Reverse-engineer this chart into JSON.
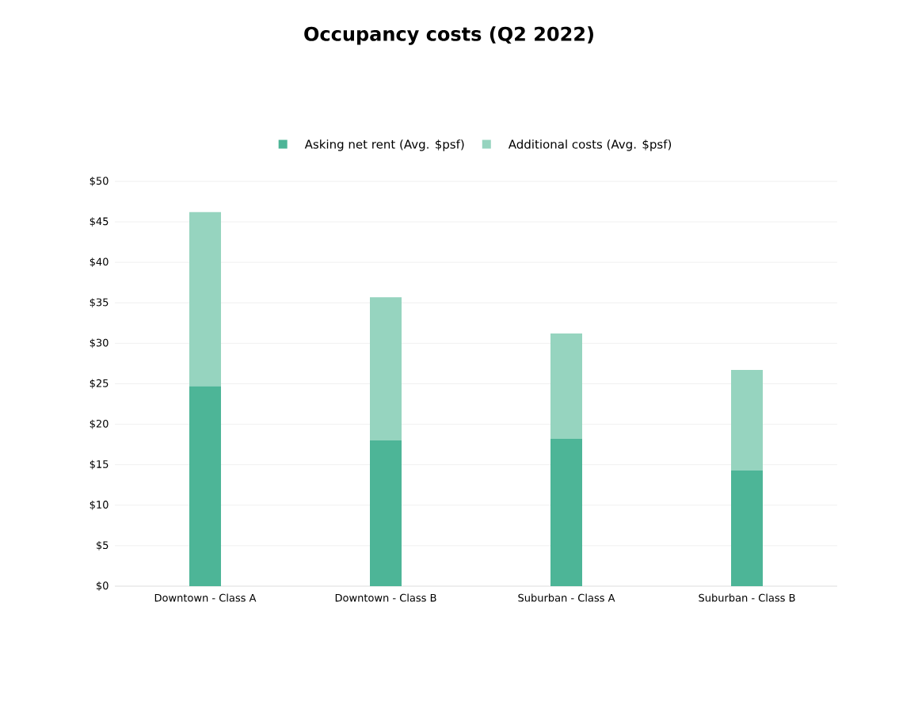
{
  "chart_data": {
    "type": "bar",
    "title": "Occupancy costs (Q2 2022)",
    "stacked": true,
    "categories": [
      "Downtown - Class A",
      "Downtown - Class B",
      "Suburban - Class A",
      "Suburban - Class B"
    ],
    "series": [
      {
        "name": "Asking net rent (Avg. $psf)",
        "color": "#4db597",
        "values": [
          24.7,
          18.0,
          18.2,
          14.3
        ]
      },
      {
        "name": "Additional costs (Avg. $psf)",
        "color": "#96d4bf",
        "values": [
          21.5,
          17.7,
          13.0,
          12.4
        ]
      }
    ],
    "ylim": [
      0,
      50
    ],
    "yticks": [
      {
        "value": 0,
        "label": "$0"
      },
      {
        "value": 5,
        "label": "$5"
      },
      {
        "value": 10,
        "label": "$10"
      },
      {
        "value": 15,
        "label": "$15"
      },
      {
        "value": 20,
        "label": "$20"
      },
      {
        "value": 25,
        "label": "$25"
      },
      {
        "value": 30,
        "label": "$30"
      },
      {
        "value": 35,
        "label": "$35"
      },
      {
        "value": 40,
        "label": "$40"
      },
      {
        "value": 45,
        "label": "$45"
      },
      {
        "value": 50,
        "label": "$50"
      }
    ],
    "grid": "y",
    "legend": "top"
  }
}
